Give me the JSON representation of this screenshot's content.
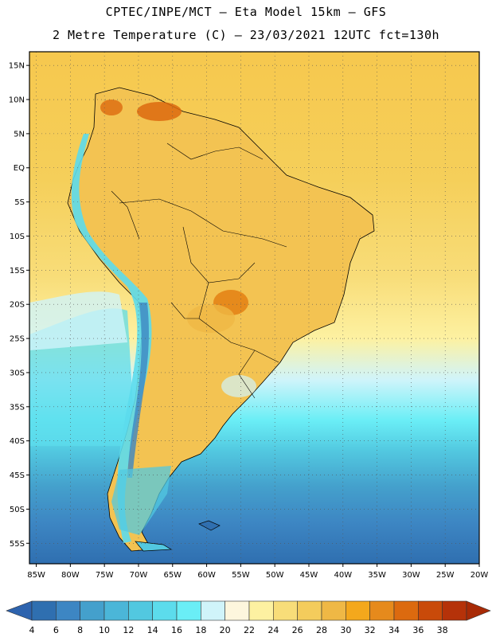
{
  "header": {
    "line1": "CPTEC/INPE/MCT –  Eta Model 15km – GFS",
    "line2": "2 Metre Temperature (C) – 23/03/2021 12UTC fct=130h"
  },
  "map": {
    "lon_range": [
      -86,
      -20
    ],
    "lat_range": [
      -58,
      17
    ],
    "lat_ticks": [
      "15N",
      "10N",
      "5N",
      "EQ",
      "5S",
      "10S",
      "15S",
      "20S",
      "25S",
      "30S",
      "35S",
      "40S",
      "45S",
      "50S",
      "55S"
    ],
    "lat_tick_values": [
      15,
      10,
      5,
      0,
      -5,
      -10,
      -15,
      -20,
      -25,
      -30,
      -35,
      -40,
      -45,
      -50,
      -55
    ],
    "lon_ticks": [
      "85W",
      "80W",
      "75W",
      "70W",
      "65W",
      "60W",
      "55W",
      "50W",
      "45W",
      "40W",
      "35W",
      "30W",
      "25W",
      "20W"
    ],
    "lon_tick_values": [
      -85,
      -80,
      -75,
      -70,
      -65,
      -60,
      -55,
      -50,
      -45,
      -40,
      -35,
      -30,
      -25,
      -20
    ],
    "gridlines": true
  },
  "colorbar": {
    "labels": [
      "4",
      "6",
      "8",
      "10",
      "12",
      "14",
      "16",
      "18",
      "20",
      "22",
      "24",
      "26",
      "28",
      "30",
      "32",
      "34",
      "36",
      "38"
    ],
    "colors": [
      "#2f6fb0",
      "#3d86c3",
      "#44a0cc",
      "#4bb6d8",
      "#52c8e0",
      "#5cdcec",
      "#6aeef6",
      "#d0f4fa",
      "#fdf6dd",
      "#fdf1a1",
      "#f8dd79",
      "#f4cc5c",
      "#efb845",
      "#f4a81c",
      "#e68a1c",
      "#dc6a0f",
      "#c94a09",
      "#b53209"
    ],
    "under_color": "#2d63ae",
    "over_color": "#a82a06"
  }
}
